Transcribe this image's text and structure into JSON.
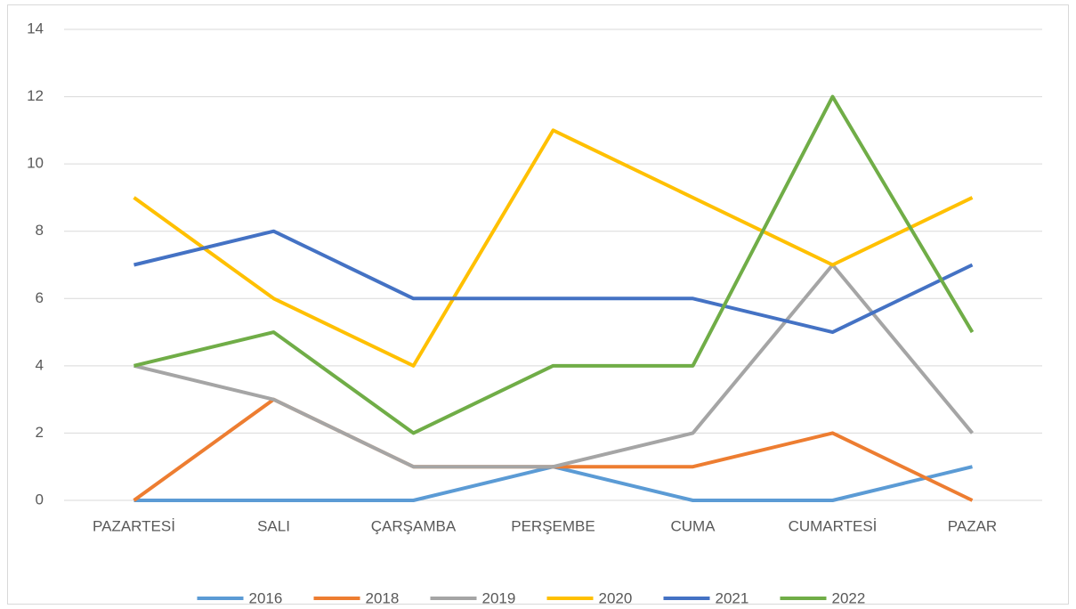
{
  "chart_data": {
    "type": "line",
    "categories": [
      "PAZARTESİ",
      "SALI",
      "ÇARŞAMBA",
      "PERŞEMBE",
      "CUMA",
      "CUMARTESİ",
      "PAZAR"
    ],
    "series": [
      {
        "name": "2016",
        "color": "#5b9bd5",
        "values": [
          0,
          0,
          0,
          1,
          0,
          0,
          1
        ]
      },
      {
        "name": "2018",
        "color": "#ed7d31",
        "values": [
          0,
          3,
          1,
          1,
          1,
          2,
          0
        ]
      },
      {
        "name": "2019",
        "color": "#a5a5a5",
        "values": [
          4,
          3,
          1,
          1,
          2,
          7,
          2
        ]
      },
      {
        "name": "2020",
        "color": "#ffc000",
        "values": [
          9,
          6,
          4,
          11,
          9,
          7,
          9
        ]
      },
      {
        "name": "2021",
        "color": "#4472c4",
        "values": [
          7,
          8,
          6,
          6,
          6,
          5,
          7
        ]
      },
      {
        "name": "2022",
        "color": "#70ad47",
        "values": [
          4,
          5,
          2,
          4,
          4,
          12,
          5
        ]
      }
    ],
    "ylim": [
      0,
      14
    ],
    "yticks": [
      0,
      2,
      4,
      6,
      8,
      10,
      12,
      14
    ],
    "grid": true,
    "legend": "bottom"
  }
}
